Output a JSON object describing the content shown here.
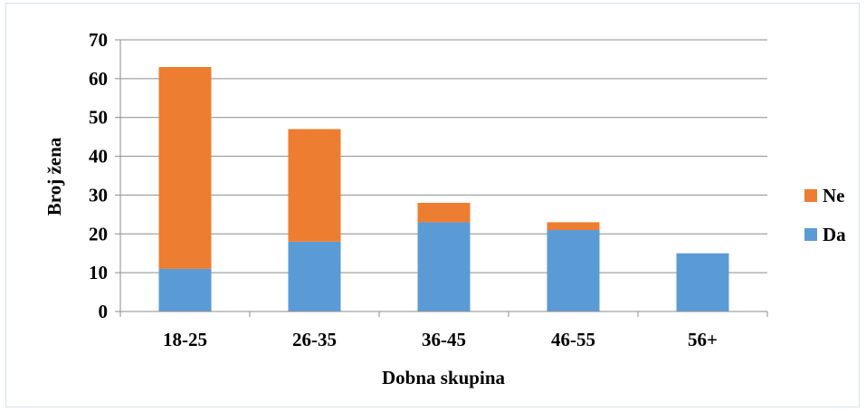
{
  "chart_data": {
    "type": "bar",
    "stacked": true,
    "categories": [
      "18-25",
      "26-35",
      "36-45",
      "46-55",
      "56+"
    ],
    "series": [
      {
        "name": "Da",
        "values": [
          11,
          18,
          23,
          21,
          15
        ],
        "color": "#5b9bd5"
      },
      {
        "name": "Ne",
        "values": [
          52,
          29,
          5,
          2,
          0
        ],
        "color": "#ed7d31"
      }
    ],
    "xlabel": "Dobna skupina",
    "ylabel": "Broj žena",
    "ylim": [
      0,
      70
    ],
    "yticks": [
      0,
      10,
      20,
      30,
      40,
      50,
      60,
      70
    ],
    "grid": true,
    "legend": "right",
    "legend_order": [
      "Ne",
      "Da"
    ]
  }
}
